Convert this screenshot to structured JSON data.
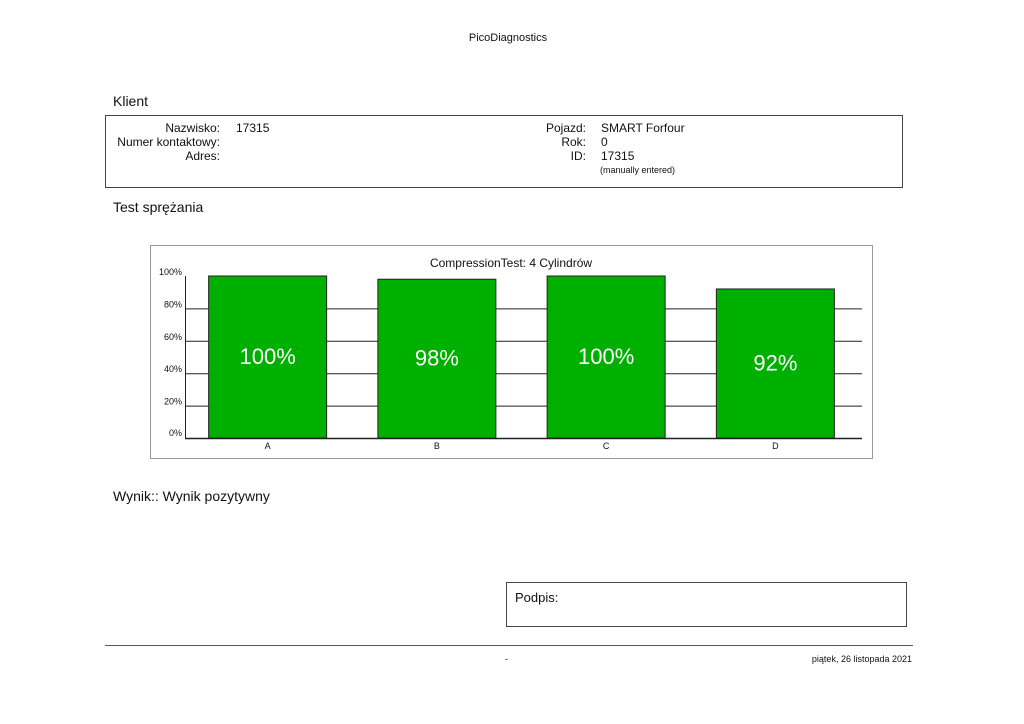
{
  "header": {
    "title": "PicoDiagnostics"
  },
  "client": {
    "section_title": "Klient",
    "surname_label": "Nazwisko:",
    "surname_value": "17315",
    "contact_label": "Numer kontaktowy:",
    "address_label": "Adres:",
    "vehicle_label": "Pojazd:",
    "vehicle_value": "SMART Forfour",
    "year_label": "Rok:",
    "year_value": "0",
    "id_label": "ID:",
    "id_value": "17315",
    "id_note": "(manually entered)"
  },
  "test": {
    "section_title": "Test sprężania"
  },
  "chart_data": {
    "type": "bar",
    "title": "CompressionTest: 4 Cylindrów",
    "categories": [
      "A",
      "B",
      "C",
      "D"
    ],
    "values": [
      100,
      98,
      100,
      92
    ],
    "data_labels": [
      "100%",
      "98%",
      "100%",
      "92%"
    ],
    "ylim": [
      0,
      100
    ],
    "yticks": [
      0,
      20,
      40,
      60,
      80,
      100
    ],
    "ytick_labels": [
      "0%",
      "20%",
      "40%",
      "60%",
      "80%",
      "100%"
    ],
    "xlabel": "",
    "ylabel": "",
    "grid": true,
    "bar_color": "#00b000"
  },
  "result": {
    "text": "Wynik:: Wynik pozytywny"
  },
  "signature": {
    "label": "Podpis:"
  },
  "footer": {
    "left": "-",
    "date": "piątek, 26 listopada 2021"
  }
}
